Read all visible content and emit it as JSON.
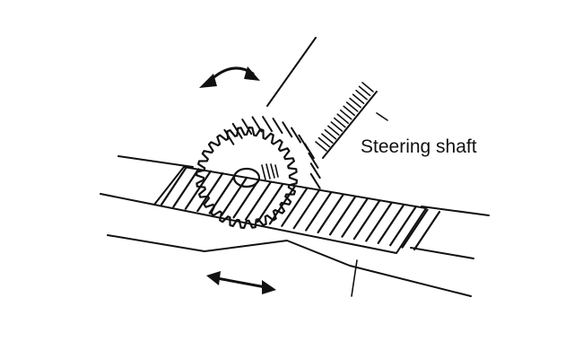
{
  "diagram": {
    "labels": {
      "steering_shaft": "Steering shaft"
    },
    "colors": {
      "ink": "#111111",
      "background": "#ffffff"
    },
    "icons": {
      "rotation": "curved-double-arrow-icon",
      "travel": "straight-double-arrow-icon"
    }
  }
}
